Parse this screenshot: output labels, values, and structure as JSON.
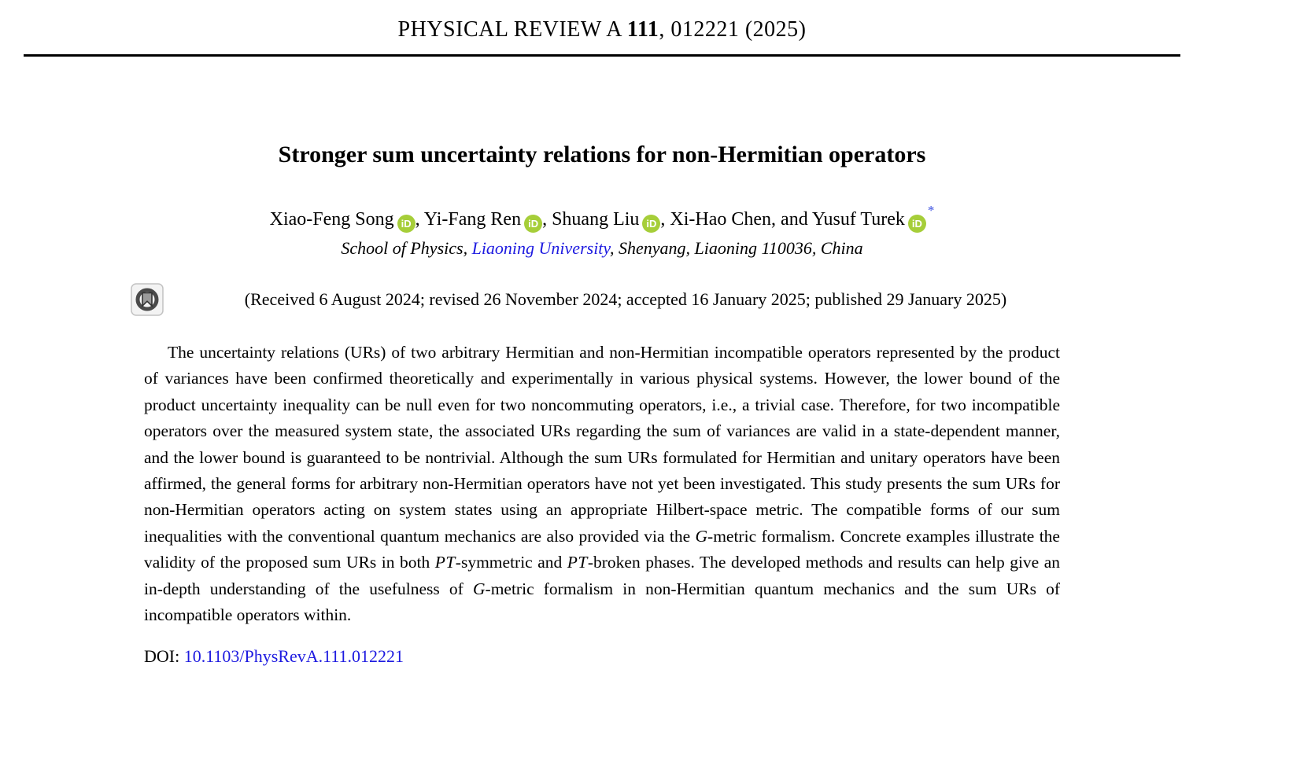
{
  "journal_header": {
    "name": "PHYSICAL REVIEW A ",
    "volume": "111",
    "issue_info": ", 012221 (2025)"
  },
  "article": {
    "title": "Stronger sum uncertainty relations for non-Hermitian operators",
    "authors": [
      {
        "name": "Xiao-Feng Song",
        "has_orcid": true,
        "sep": ", "
      },
      {
        "name": "Yi-Fang Ren",
        "has_orcid": true,
        "sep": ", "
      },
      {
        "name": "Shuang Liu",
        "has_orcid": true,
        "sep": ", "
      },
      {
        "name": "Xi-Hao Chen",
        "has_orcid": false,
        "sep": ", and "
      },
      {
        "name": "Yusuf Turek",
        "has_orcid": true,
        "footnote_marker": "*"
      }
    ],
    "affiliation": {
      "prefix": "School of Physics, ",
      "link": "Liaoning University",
      "suffix": ", Shenyang, Liaoning 110036, China"
    },
    "history": "(Received 6 August 2024; revised 26 November 2024; accepted 16 January 2025; published 29 January 2025)",
    "abstract_runs": [
      {
        "style": "normal",
        "text": "The uncertainty relations (URs) of two arbitrary Hermitian and non-Hermitian incompatible operators represented by the product of variances have been confirmed theoretically and experimentally in various physical systems. However, the lower bound of the product uncertainty inequality can be null even for two noncommuting operators, i.e., a trivial case. Therefore, for two incompatible operators over the measured system state, the associated URs regarding the sum of variances are valid in a state-dependent manner, and the lower bound is guaranteed to be nontrivial. Although the sum URs formulated for Hermitian and unitary operators have been affirmed, the general forms for arbitrary non-Hermitian operators have not yet been investigated. This study presents the sum URs for non-Hermitian operators acting on system states using an appropriate Hilbert-space metric. The compatible forms of our sum inequalities with the conventional quantum mechanics are also provided via the "
      },
      {
        "style": "italic",
        "text": "G"
      },
      {
        "style": "normal",
        "text": "-metric formalism. Concrete examples illustrate the validity of the proposed sum URs in both "
      },
      {
        "style": "script",
        "text": "PT"
      },
      {
        "style": "normal",
        "text": "-symmetric and "
      },
      {
        "style": "script",
        "text": "PT"
      },
      {
        "style": "normal",
        "text": "-broken phases. The developed methods and results can help give an in-depth understanding of the usefulness of "
      },
      {
        "style": "italic",
        "text": "G"
      },
      {
        "style": "normal",
        "text": "-metric formalism in non-Hermitian quantum mechanics and the sum URs of incompatible operators within."
      }
    ],
    "doi": {
      "label": "DOI: ",
      "link": "10.1103/PhysRevA.111.012221"
    }
  },
  "icons": {
    "orcid_text": "iD",
    "orcid_name": "orcid-id-icon",
    "crossmark_name": "crossmark-check-for-updates-icon"
  },
  "colors": {
    "link_blue": "#1d1ae0",
    "orcid_green": "#A6CE39",
    "text": "#000000",
    "rule": "#000000"
  }
}
